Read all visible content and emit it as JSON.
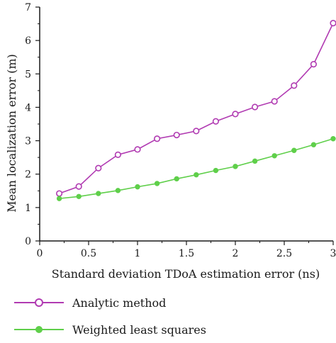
{
  "chart_data": {
    "type": "line",
    "xlabel": "Standard deviation TDoA estimation error (ns)",
    "ylabel": "Mean localization error (m)",
    "xlim": [
      0,
      3
    ],
    "ylim": [
      0,
      7
    ],
    "x_ticks": [
      "0",
      "0.5",
      "1",
      "1.5",
      "2",
      "2.5",
      "3"
    ],
    "y_ticks": [
      "0",
      "1",
      "2",
      "3",
      "4",
      "5",
      "6",
      "7"
    ],
    "grid": false,
    "legend_position": "bottom",
    "x": [
      0.2,
      0.4,
      0.6,
      0.8,
      1.0,
      1.2,
      1.4,
      1.6,
      1.8,
      2.0,
      2.2,
      2.4,
      2.6,
      2.8,
      3.0
    ],
    "series": [
      {
        "name": "Analytic method",
        "color": "#b13bb2",
        "marker": "open-circle",
        "values": [
          1.42,
          1.63,
          2.18,
          2.58,
          2.74,
          3.06,
          3.17,
          3.29,
          3.58,
          3.8,
          4.01,
          4.18,
          4.65,
          5.29,
          6.52
        ]
      },
      {
        "name": "Weighted least squares",
        "color": "#5fcf4a",
        "marker": "filled-circle",
        "values": [
          1.27,
          1.33,
          1.42,
          1.51,
          1.62,
          1.72,
          1.86,
          1.98,
          2.11,
          2.23,
          2.39,
          2.55,
          2.71,
          2.88,
          3.06
        ]
      }
    ]
  }
}
